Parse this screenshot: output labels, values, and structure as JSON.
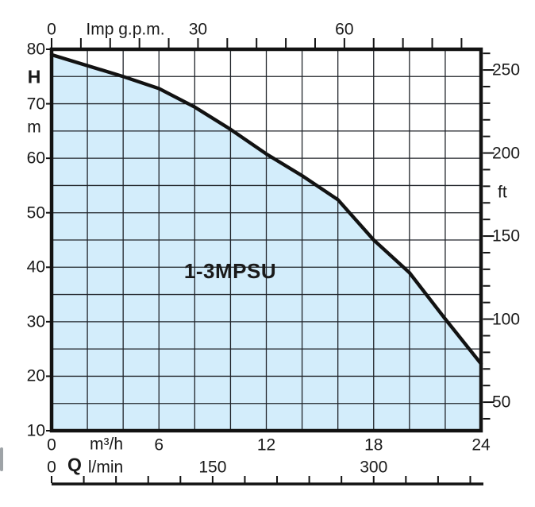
{
  "chart_data": {
    "type": "line",
    "series_label": "1-3MPSU",
    "curve": {
      "q_m3h": [
        0,
        2,
        4,
        6,
        8,
        10,
        12,
        14,
        16,
        18,
        20,
        22,
        24
      ],
      "h_m": [
        79,
        77,
        75,
        72.8,
        69.4,
        65.3,
        60.8,
        56.8,
        52.4,
        45,
        39,
        30.5,
        22.3
      ]
    },
    "axes": {
      "left": {
        "label": "H",
        "unit": "m",
        "tick_labels": [
          80,
          70,
          60,
          50,
          40,
          30,
          20,
          10
        ],
        "range": [
          10,
          80
        ],
        "grid_step": 5
      },
      "right": {
        "unit": "ft",
        "tick_labels": [
          250,
          200,
          150,
          100,
          50
        ],
        "minor_step": 10,
        "minor_range": [
          40,
          260
        ]
      },
      "top": {
        "unit": "Imp g.p.m.",
        "tick_labels": [
          0,
          30,
          60
        ],
        "minor_step": 6,
        "range": [
          0,
          88
        ]
      },
      "bottom_flow": {
        "unit": "m³/h",
        "tick_labels": [
          0,
          6,
          12,
          18,
          24
        ],
        "range": [
          0,
          24
        ],
        "grid_step": 2
      },
      "bottom_lmin": {
        "label": "Q",
        "unit": "l/min",
        "tick_labels": [
          0,
          150,
          300
        ],
        "minor_step": 30,
        "range": [
          0,
          400
        ],
        "last_tick": 390
      }
    },
    "grid": true,
    "colors": {
      "fill": "#d3edfb",
      "curve": "#121212",
      "grid": "#20242a",
      "axis": "#121212",
      "text": "#1a1a1a"
    }
  }
}
